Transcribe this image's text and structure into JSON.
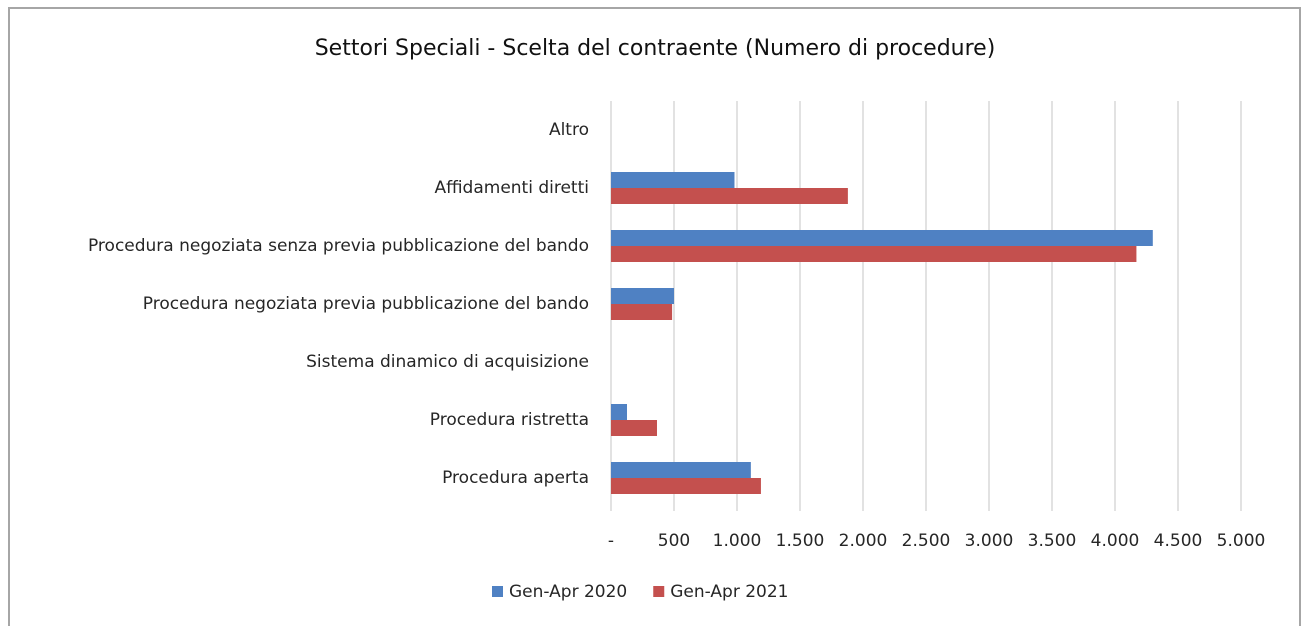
{
  "chart_data": {
    "type": "bar",
    "orientation": "horizontal",
    "title": "Settori Speciali - Scelta del contraente (Numero di procedure)",
    "categories": [
      "Altro",
      "Affidamenti diretti",
      "Procedura negoziata senza previa pubblicazione del bando",
      "Procedura negoziata previa pubblicazione del bando",
      "Sistema dinamico di acquisizione",
      "Procedura ristretta",
      "Procedura aperta"
    ],
    "series": [
      {
        "name": "Gen-Apr 2020",
        "color": "#4f81c3",
        "values": [
          0,
          980,
          4300,
          500,
          0,
          127,
          1110
        ]
      },
      {
        "name": "Gen-Apr 2021",
        "color": "#c4504e",
        "values": [
          0,
          1880,
          4170,
          485,
          0,
          365,
          1190
        ]
      }
    ],
    "xlim": [
      0,
      5000
    ],
    "xticks": [
      {
        "value": 0,
        "label": "-"
      },
      500,
      {
        "value": 1000,
        "label": "1.000"
      },
      {
        "value": 1500,
        "label": "1.500"
      },
      {
        "value": 2000,
        "label": "2.000"
      },
      {
        "value": 2500,
        "label": "2.500"
      },
      {
        "value": 3000,
        "label": "3.000"
      },
      {
        "value": 3500,
        "label": "3.500"
      },
      {
        "value": 4000,
        "label": "4.000"
      },
      {
        "value": 4500,
        "label": "4.500"
      },
      {
        "value": 5000,
        "label": "5.000"
      }
    ],
    "grid": true,
    "legend": "bottom"
  }
}
